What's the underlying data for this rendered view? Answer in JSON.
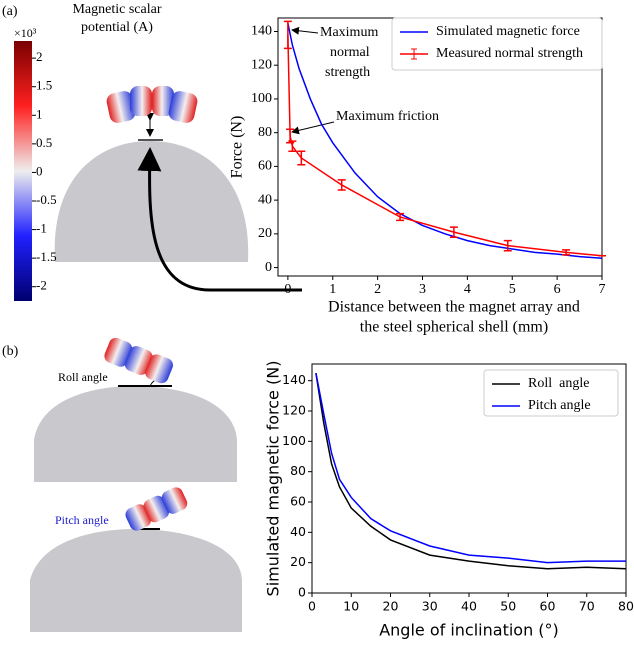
{
  "panel_labels": [
    "(a)",
    "(b)"
  ],
  "colorbar": {
    "title": [
      "Magnetic scalar",
      "potential (A)"
    ],
    "exponent": "×10³",
    "range": [
      -2.25,
      2.3
    ],
    "ticks": [
      2,
      1.5,
      1,
      0.5,
      0,
      -0.5,
      -1,
      -1.5,
      -2
    ]
  },
  "illustration_labels": {
    "roll": "Roll angle",
    "pitch": "Pitch angle"
  },
  "chart_data": [
    {
      "type": "line",
      "xlabel": [
        "Distance between the magnet array and",
        "the steel spherical shell (mm)"
      ],
      "ylabel": "Force (N)",
      "xlim": [
        -0.22,
        7
      ],
      "ylim": [
        -5,
        148
      ],
      "xticks": [
        0,
        1,
        2,
        3,
        4,
        5,
        6,
        7
      ],
      "yticks": [
        0,
        20,
        40,
        60,
        80,
        100,
        120,
        140
      ],
      "legend": "upper right",
      "annotations": {
        "normal": [
          "Maximum",
          "normal",
          "strength"
        ],
        "friction": "Maximum friction"
      },
      "series": [
        {
          "name": "Simulated magnetic force",
          "color": "#0000ff",
          "x": [
            0,
            0.1,
            0.25,
            0.5,
            0.75,
            1,
            1.5,
            2,
            2.5,
            3,
            3.5,
            4,
            4.5,
            5,
            5.5,
            6,
            6.5,
            7
          ],
          "values": [
            145,
            132,
            118,
            100,
            85,
            74,
            56,
            42,
            32,
            25,
            20,
            16,
            13,
            11,
            9,
            8,
            6.5,
            5.5
          ]
        },
        {
          "name": "Measured normal strength",
          "color": "#ff0000",
          "x": [
            0,
            0.05,
            0.1,
            0.3,
            1.2,
            2.5,
            3.7,
            4.9,
            6.2,
            7
          ],
          "values": [
            138,
            78,
            72,
            65,
            49,
            30,
            21,
            13,
            9,
            7
          ],
          "errors": [
            8,
            4,
            3,
            4,
            3,
            2,
            3,
            3,
            1.5,
            0
          ]
        }
      ]
    },
    {
      "type": "line",
      "xlabel": "Angle of inclination (°)",
      "ylabel": "Simulated magnetic force (N)",
      "xlim": [
        0,
        80
      ],
      "ylim": [
        0,
        151
      ],
      "xticks": [
        0,
        10,
        20,
        30,
        40,
        50,
        60,
        70,
        80
      ],
      "yticks": [
        0,
        20,
        40,
        60,
        80,
        100,
        120,
        140
      ],
      "legend": "upper right",
      "x": [
        1,
        3,
        5,
        7,
        10,
        15,
        20,
        30,
        40,
        50,
        60,
        70,
        80
      ],
      "series": [
        {
          "name": "Roll  angle",
          "color": "#000000",
          "values": [
            145,
            112,
            85,
            70,
            56,
            44,
            35,
            25,
            21,
            18,
            16,
            17,
            16
          ]
        },
        {
          "name": "Pitch angle",
          "color": "#0000ff",
          "values": [
            145,
            118,
            92,
            75,
            63,
            49,
            41,
            31,
            25,
            23,
            20,
            21,
            21
          ]
        }
      ]
    }
  ]
}
